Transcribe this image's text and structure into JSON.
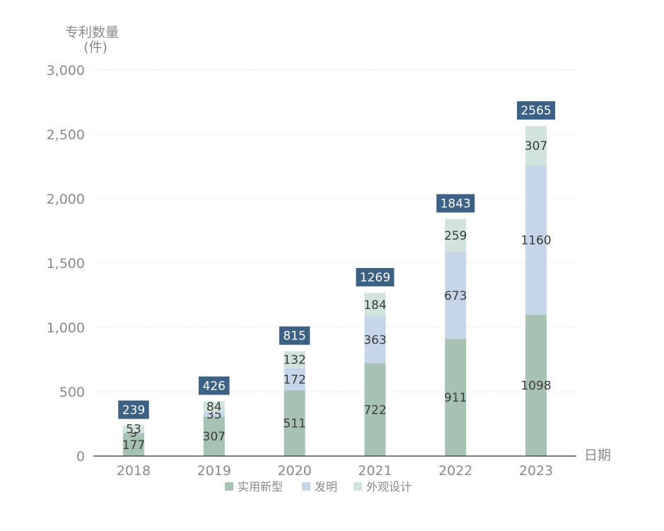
{
  "chart_data": {
    "type": "bar",
    "stacked": true,
    "title": "",
    "ylabel_line1": "专利数量",
    "ylabel_line2": "(件)",
    "xlabel": "日期",
    "categories": [
      "2018",
      "2019",
      "2020",
      "2021",
      "2022",
      "2023"
    ],
    "ylim": [
      0,
      3000
    ],
    "yticks": [
      0,
      500,
      1000,
      1500,
      2000,
      2500,
      3000
    ],
    "ytick_labels": [
      "0",
      "500",
      "1,000",
      "1,500",
      "2,000",
      "2,500",
      "3,000"
    ],
    "series": [
      {
        "name": "实用新型",
        "color": "#a5c2b3",
        "values": [
          177,
          307,
          511,
          722,
          911,
          1098
        ]
      },
      {
        "name": "发明",
        "color": "#c5d5ea",
        "values": [
          9,
          35,
          172,
          363,
          673,
          1160
        ]
      },
      {
        "name": "外观设计",
        "color": "#d1e3dd",
        "values": [
          53,
          84,
          132,
          184,
          259,
          307
        ]
      }
    ],
    "totals": [
      239,
      426,
      815,
      1269,
      1843,
      2565
    ],
    "total_label_color": "#3d6185",
    "grid": true,
    "legend_position": "bottom"
  }
}
